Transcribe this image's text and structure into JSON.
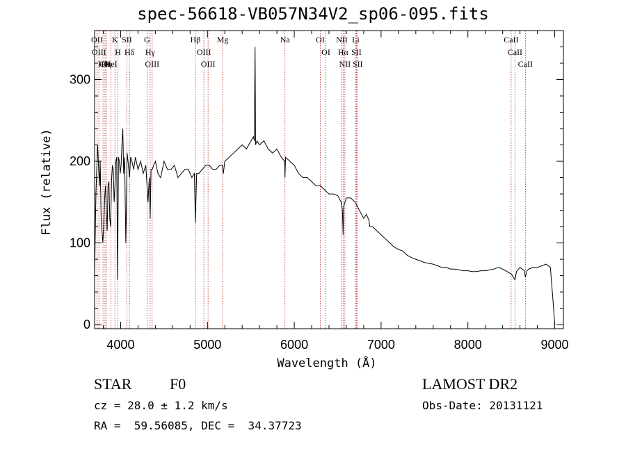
{
  "title": "spec-56618-VB057N34V2_sp06-095.fits",
  "info": {
    "object_class": "STAR",
    "subclass": "F0",
    "survey": "LAMOST DR2",
    "cz": "cz = 28.0 ± 1.2 km/s",
    "obs_date": "Obs-Date: 20131121",
    "radec": "RA =  59.56085, DEC =  34.37723"
  },
  "colors": {
    "spectrum": "#000000",
    "lines": "#b22222",
    "axes": "#000000"
  },
  "chart_data": {
    "type": "line",
    "title": "spec-56618-VB057N34V2_sp06-095.fits",
    "xlabel": "Wavelength (Å)",
    "ylabel": "Flux (relative)",
    "xlim": [
      3700,
      9100
    ],
    "ylim": [
      -5,
      360
    ],
    "xticks": [
      4000,
      5000,
      6000,
      7000,
      8000,
      9000
    ],
    "yticks": [
      0,
      100,
      200,
      300
    ],
    "grid": false,
    "series": [
      {
        "x": [
          3700,
          3715,
          3725,
          3735,
          3745,
          3755,
          3765,
          3775,
          3785,
          3795,
          3805,
          3815,
          3825,
          3835,
          3845,
          3855,
          3865,
          3875,
          3885,
          3895,
          3905,
          3915,
          3925,
          3935,
          3945,
          3955,
          3965,
          3975,
          3985,
          3995,
          4005,
          4015,
          4025,
          4035,
          4045,
          4060,
          4075,
          4090,
          4102,
          4115,
          4130,
          4150,
          4170,
          4200,
          4230,
          4260,
          4290,
          4315,
          4330,
          4340,
          4350,
          4365,
          4380,
          4400,
          4430,
          4460,
          4500,
          4540,
          4580,
          4620,
          4660,
          4700,
          4740,
          4780,
          4820,
          4850,
          4861,
          4875,
          4900,
          4940,
          4980,
          5020,
          5060,
          5100,
          5140,
          5170,
          5183,
          5200,
          5250,
          5300,
          5350,
          5400,
          5450,
          5500,
          5530,
          5540,
          5548,
          5555,
          5570,
          5600,
          5650,
          5700,
          5750,
          5800,
          5850,
          5890,
          5893,
          5900,
          5950,
          6000,
          6050,
          6100,
          6150,
          6200,
          6250,
          6300,
          6350,
          6400,
          6450,
          6500,
          6540,
          6555,
          6563,
          6570,
          6585,
          6600,
          6650,
          6700,
          6750,
          6800,
          6830,
          6860,
          6870,
          6900,
          6950,
          7000,
          7050,
          7100,
          7150,
          7200,
          7250,
          7300,
          7350,
          7400,
          7450,
          7500,
          7550,
          7600,
          7650,
          7700,
          7750,
          7800,
          7850,
          7900,
          7950,
          8000,
          8050,
          8100,
          8150,
          8200,
          8250,
          8300,
          8350,
          8400,
          8450,
          8500,
          8542,
          8560,
          8600,
          8650,
          8662,
          8680,
          8700,
          8750,
          8800,
          8850,
          8900,
          8950,
          8980,
          9000
        ],
        "y": [
          60,
          160,
          190,
          220,
          195,
          170,
          200,
          130,
          115,
          100,
          120,
          155,
          170,
          140,
          115,
          170,
          175,
          130,
          120,
          175,
          195,
          190,
          150,
          170,
          200,
          205,
          55,
          205,
          200,
          185,
          195,
          220,
          240,
          185,
          205,
          100,
          210,
          195,
          180,
          205,
          200,
          190,
          205,
          190,
          200,
          185,
          195,
          150,
          180,
          130,
          190,
          190,
          195,
          200,
          185,
          180,
          200,
          190,
          190,
          195,
          180,
          185,
          190,
          190,
          180,
          185,
          125,
          185,
          185,
          190,
          195,
          195,
          190,
          190,
          195,
          195,
          185,
          200,
          205,
          210,
          215,
          220,
          215,
          225,
          230,
          225,
          340,
          220,
          225,
          220,
          225,
          215,
          210,
          215,
          205,
          200,
          180,
          205,
          200,
          195,
          185,
          180,
          180,
          175,
          170,
          170,
          165,
          160,
          160,
          158,
          150,
          140,
          110,
          145,
          150,
          155,
          155,
          150,
          140,
          130,
          135,
          128,
          120,
          120,
          115,
          110,
          105,
          100,
          95,
          92,
          90,
          85,
          82,
          80,
          78,
          76,
          75,
          74,
          72,
          70,
          70,
          68,
          68,
          67,
          66,
          66,
          65,
          65,
          66,
          66,
          67,
          68,
          70,
          68,
          65,
          62,
          55,
          65,
          70,
          66,
          58,
          66,
          68,
          70,
          70,
          72,
          74,
          70,
          30,
          0
        ]
      }
    ],
    "line_markers": [
      {
        "wavelength": 3727,
        "label": "OII"
      },
      {
        "wavelength": 3750,
        "label": "OIII"
      },
      {
        "wavelength": 3797,
        "label": "Hθ"
      },
      {
        "wavelength": 3820,
        "label": "CII"
      },
      {
        "wavelength": 3835,
        "label": "Hη"
      },
      {
        "wavelength": 3889,
        "label": "HeI"
      },
      {
        "wavelength": 3934,
        "label": "K"
      },
      {
        "wavelength": 3969,
        "label": "H"
      },
      {
        "wavelength": 4072,
        "label": "SII"
      },
      {
        "wavelength": 4102,
        "label": "Hδ"
      },
      {
        "wavelength": 4304,
        "label": "G"
      },
      {
        "wavelength": 4340,
        "label": "Hγ"
      },
      {
        "wavelength": 4363,
        "label": "OIII"
      },
      {
        "wavelength": 4861,
        "label": "Hβ"
      },
      {
        "wavelength": 4959,
        "label": "OIII"
      },
      {
        "wavelength": 5007,
        "label": "OIII"
      },
      {
        "wavelength": 5175,
        "label": "Mg"
      },
      {
        "wavelength": 5893,
        "label": "Na"
      },
      {
        "wavelength": 6300,
        "label": "OI"
      },
      {
        "wavelength": 6364,
        "label": "OI"
      },
      {
        "wavelength": 6548,
        "label": "NII"
      },
      {
        "wavelength": 6563,
        "label": "Hα"
      },
      {
        "wavelength": 6583,
        "label": "NII"
      },
      {
        "wavelength": 6708,
        "label": "Li"
      },
      {
        "wavelength": 6716,
        "label": "SII"
      },
      {
        "wavelength": 6731,
        "label": "SII"
      },
      {
        "wavelength": 8498,
        "label": "CaII"
      },
      {
        "wavelength": 8542,
        "label": "CaII"
      },
      {
        "wavelength": 8662,
        "label": "CaII"
      }
    ]
  }
}
